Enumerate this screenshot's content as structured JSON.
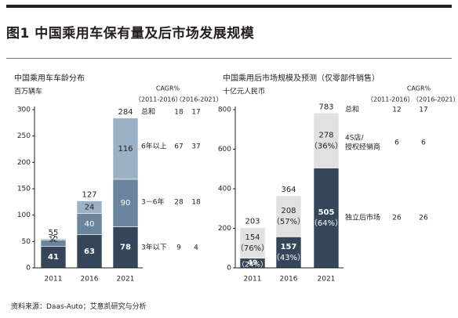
{
  "page": {
    "title": "图1 中国乘用车保有量及后市场发展规模",
    "source": "资料来源：Daas-Auto；艾意凯研究与分析"
  },
  "colors": {
    "dark": "#35465a",
    "mid": "#6a849e",
    "light": "#9bb2c6",
    "grey": "#e1e1e1",
    "outline": "#231f20",
    "white": "#ffffff"
  },
  "chart_data": [
    {
      "type": "bar",
      "stacked": true,
      "title": "中国乘用车车龄分布",
      "ylabel": "百万辆车",
      "categories": [
        "2011",
        "2016",
        "2021"
      ],
      "yticks": [
        "0",
        "50",
        "100",
        "150",
        "200",
        "250",
        "300"
      ],
      "ylim": [
        0,
        300
      ],
      "series": [
        {
          "name": "3年以下",
          "values": [
            41,
            63,
            78
          ],
          "labels": [
            "41",
            "63",
            "78"
          ],
          "color": "#35465a",
          "text_color": "#ffffff"
        },
        {
          "name": "3－6年",
          "values": [
            12,
            40,
            90
          ],
          "labels": [
            "12",
            "40",
            "90"
          ],
          "color": "#6a849e",
          "text_color": "#ffffff"
        },
        {
          "name": "6年以上",
          "values": [
            2,
            24,
            116
          ],
          "labels": [
            "2",
            "24",
            "116"
          ],
          "color": "#9bb2c6",
          "text_color": "#231f20"
        }
      ],
      "totals": [
        "55",
        "127",
        "284"
      ],
      "cagr": {
        "header": "CAGR%",
        "periods": [
          "（2011-2016）",
          "（2016-2021）"
        ],
        "rows": [
          {
            "name": "总和",
            "v1": "18",
            "v2": "17"
          },
          {
            "name": "6年以上",
            "v1": "67",
            "v2": "37"
          },
          {
            "name": "3－6年",
            "v1": "28",
            "v2": "18"
          },
          {
            "name": "3年以下",
            "v1": "9",
            "v2": "4"
          }
        ]
      }
    },
    {
      "type": "bar",
      "stacked": true,
      "title": "中国乘用后市场规模及预测（仅零部件销售）",
      "ylabel": "十亿元人民币",
      "categories": [
        "2011",
        "2016",
        "2021"
      ],
      "yticks": [
        "0",
        "200",
        "400",
        "600",
        "800"
      ],
      "ylim": [
        0,
        800
      ],
      "series": [
        {
          "name": "独立后市场",
          "values": [
            49,
            157,
            505
          ],
          "labels": [
            "49",
            "157",
            "505"
          ],
          "share_labels": [
            "24%",
            "43%",
            "64%"
          ],
          "color": "#35465a",
          "text_color": "#ffffff"
        },
        {
          "name": "4S店/授权经销商",
          "values": [
            154,
            208,
            278
          ],
          "labels": [
            "154",
            "208",
            "278"
          ],
          "share_labels": [
            "76%",
            "57%",
            "36%"
          ],
          "color": "#e1e1e1",
          "text_color": "#231f20"
        }
      ],
      "totals": [
        "203",
        "364",
        "783"
      ],
      "cagr": {
        "header": "CAGR%",
        "periods": [
          "（2011-2016）",
          "（2016-2021）"
        ],
        "rows": [
          {
            "name": "总和",
            "v1": "12",
            "v2": "17"
          },
          {
            "name": "4S店/",
            "name2": "授权经销商",
            "v1": "6",
            "v2": "6"
          },
          {
            "name": "独立后市场",
            "v1": "26",
            "v2": "26"
          }
        ]
      }
    }
  ]
}
